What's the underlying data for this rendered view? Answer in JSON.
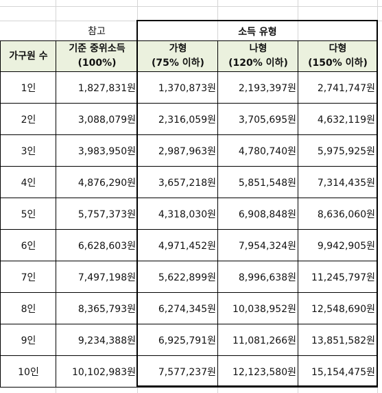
{
  "reference_label": "참고",
  "income_type_label": "소득 유형",
  "headers": {
    "household": "가구원 수",
    "median_line1": "기준 중위소득",
    "median_line2": "(100%)",
    "ga_line1": "가형",
    "ga_line2": "(75% 이하)",
    "na_line1": "나형",
    "na_line2": "(120% 이하)",
    "da_line1": "다형",
    "da_line2": "(150% 이하)"
  },
  "rows": [
    {
      "size": "1인",
      "median": "1,827,831원",
      "ga": "1,370,873원",
      "na": "2,193,397원",
      "da": "2,741,747원"
    },
    {
      "size": "2인",
      "median": "3,088,079원",
      "ga": "2,316,059원",
      "na": "3,705,695원",
      "da": "4,632,119원"
    },
    {
      "size": "3인",
      "median": "3,983,950원",
      "ga": "2,987,963원",
      "na": "4,780,740원",
      "da": "5,975,925원"
    },
    {
      "size": "4인",
      "median": "4,876,290원",
      "ga": "3,657,218원",
      "na": "5,851,548원",
      "da": "7,314,435원"
    },
    {
      "size": "5인",
      "median": "5,757,373원",
      "ga": "4,318,030원",
      "na": "6,908,848원",
      "da": "8,636,060원"
    },
    {
      "size": "6인",
      "median": "6,628,603원",
      "ga": "4,971,452원",
      "na": "7,954,324원",
      "da": "9,942,905원"
    },
    {
      "size": "7인",
      "median": "7,497,198원",
      "ga": "5,622,899원",
      "na": "8,996,638원",
      "da": "11,245,797원"
    },
    {
      "size": "8인",
      "median": "8,365,793원",
      "ga": "6,274,345원",
      "na": "10,038,952원",
      "da": "12,548,690원"
    },
    {
      "size": "9인",
      "median": "9,234,388원",
      "ga": "6,925,791원",
      "na": "11,081,266원",
      "da": "13,851,582원"
    },
    {
      "size": "10인",
      "median": "10,102,983원",
      "ga": "7,577,237원",
      "na": "12,123,580원",
      "da": "15,154,475원"
    }
  ]
}
